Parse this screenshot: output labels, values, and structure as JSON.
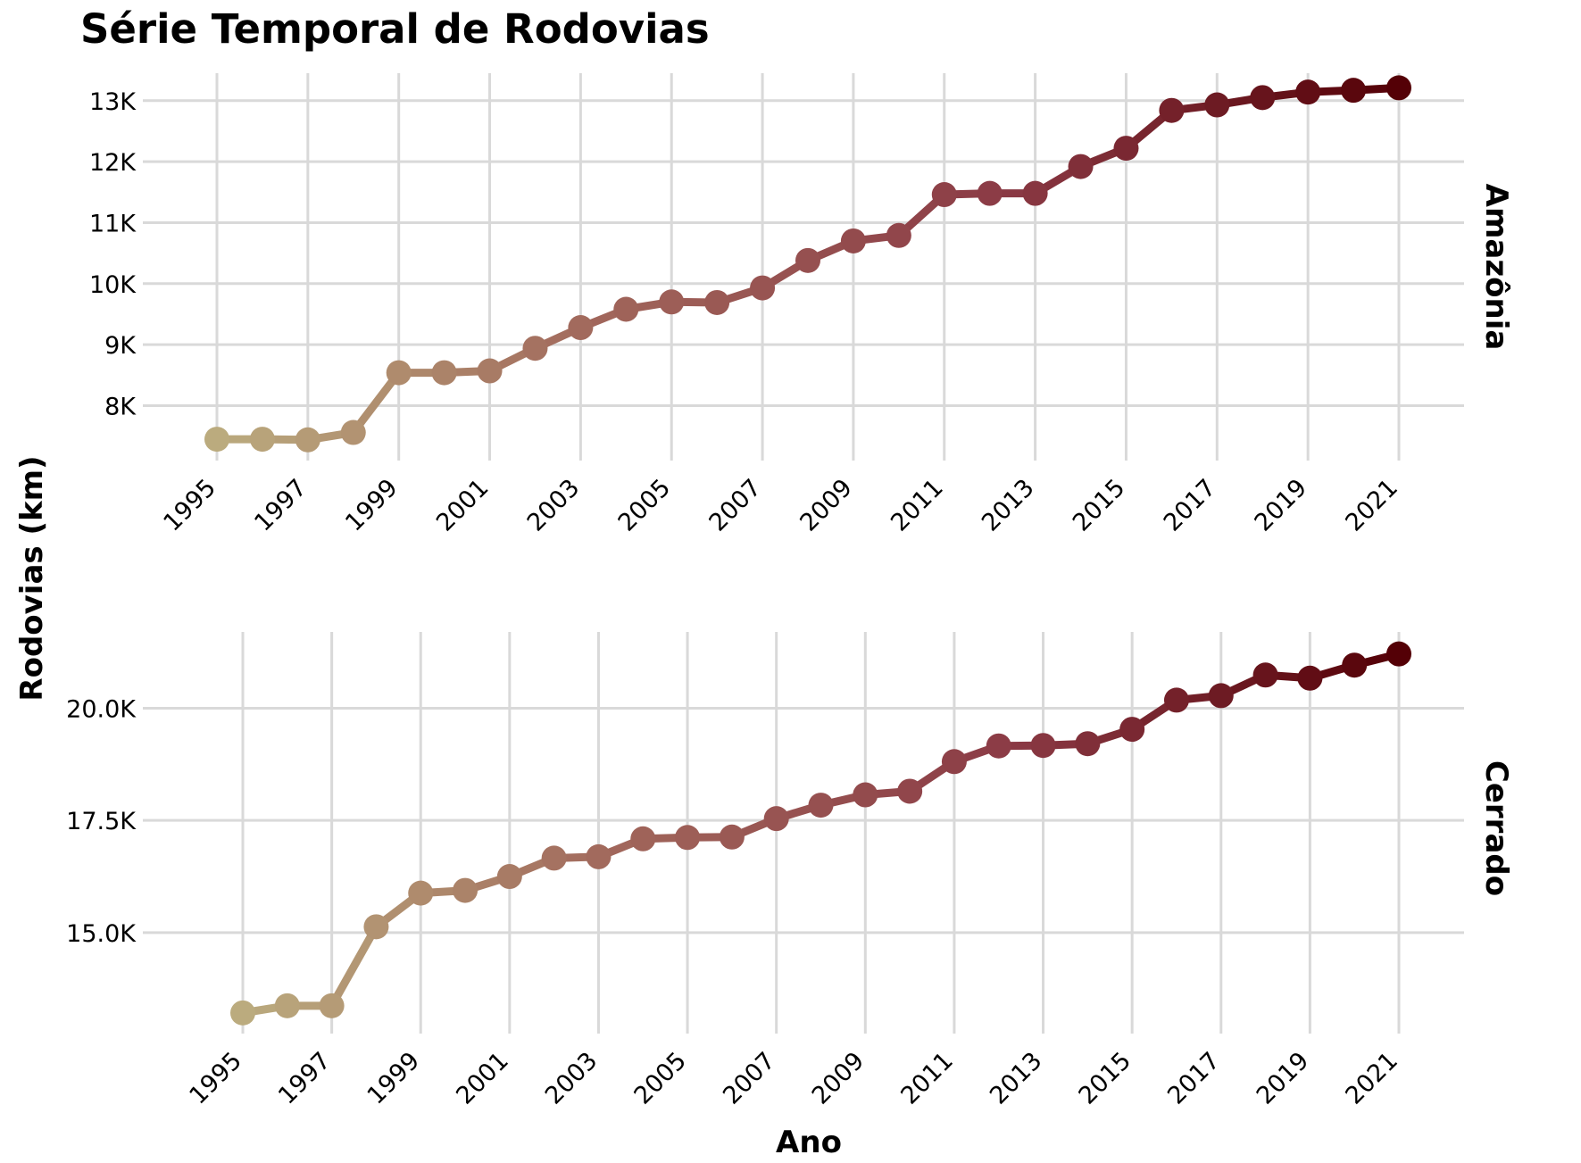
{
  "title": "Série Temporal de Rodovias",
  "xlabel": "Ano",
  "ylabel": "Rodovias (km)",
  "colors": {
    "start": "#bbab7e",
    "mid": "#a0655a",
    "mid2": "#8b3a45",
    "end": "#540006",
    "grid": "#d9d9d9"
  },
  "chart_data": {
    "type": "line",
    "xlabel": "Ano",
    "ylabel": "Rodovias (km)",
    "grid": true,
    "facets": [
      {
        "name": "Amazônia",
        "x": [
          1995,
          1996,
          1997,
          1998,
          1999,
          2000,
          2001,
          2002,
          2003,
          2004,
          2005,
          2006,
          2007,
          2008,
          2009,
          2010,
          2011,
          2012,
          2013,
          2014,
          2015,
          2016,
          2017,
          2018,
          2019,
          2020,
          2021
        ],
        "values": [
          7450,
          7450,
          7440,
          7560,
          8540,
          8540,
          8570,
          8940,
          9280,
          9580,
          9700,
          9690,
          9930,
          10380,
          10700,
          10790,
          11460,
          11480,
          11480,
          11920,
          12220,
          12840,
          12930,
          13050,
          13140,
          13170,
          13210
        ],
        "x_ticks": [
          "1995",
          "1997",
          "1999",
          "2001",
          "2003",
          "2005",
          "2007",
          "2009",
          "2011",
          "2013",
          "2015",
          "2017",
          "2019",
          "2021"
        ],
        "y_ticks": [
          8000,
          9000,
          10000,
          11000,
          12000,
          13000
        ],
        "y_tick_labels": [
          "8K",
          "9K",
          "10K",
          "11K",
          "12K",
          "13K"
        ],
        "ylim": [
          7100,
          13450
        ]
      },
      {
        "name": "Cerrado",
        "x": [
          1995,
          1996,
          1997,
          1998,
          1999,
          2000,
          2001,
          2002,
          2003,
          2004,
          2005,
          2006,
          2007,
          2008,
          2009,
          2010,
          2011,
          2012,
          2013,
          2014,
          2015,
          2016,
          2017,
          2018,
          2019,
          2020,
          2021
        ],
        "values": [
          13210,
          13370,
          13370,
          15130,
          15880,
          15940,
          16250,
          16660,
          16690,
          17090,
          17120,
          17130,
          17540,
          17840,
          18070,
          18150,
          18810,
          19160,
          19170,
          19210,
          19530,
          20180,
          20280,
          20740,
          20670,
          20960,
          21210
        ],
        "x_ticks": [
          "1995",
          "1997",
          "1999",
          "2001",
          "2003",
          "2005",
          "2007",
          "2009",
          "2011",
          "2013",
          "2015",
          "2017",
          "2019",
          "2021"
        ],
        "y_ticks": [
          15000,
          17500,
          20000
        ],
        "y_tick_labels": [
          "15.0K",
          "17.5K",
          "20.0K"
        ],
        "ylim": [
          12750,
          21700
        ]
      }
    ]
  }
}
